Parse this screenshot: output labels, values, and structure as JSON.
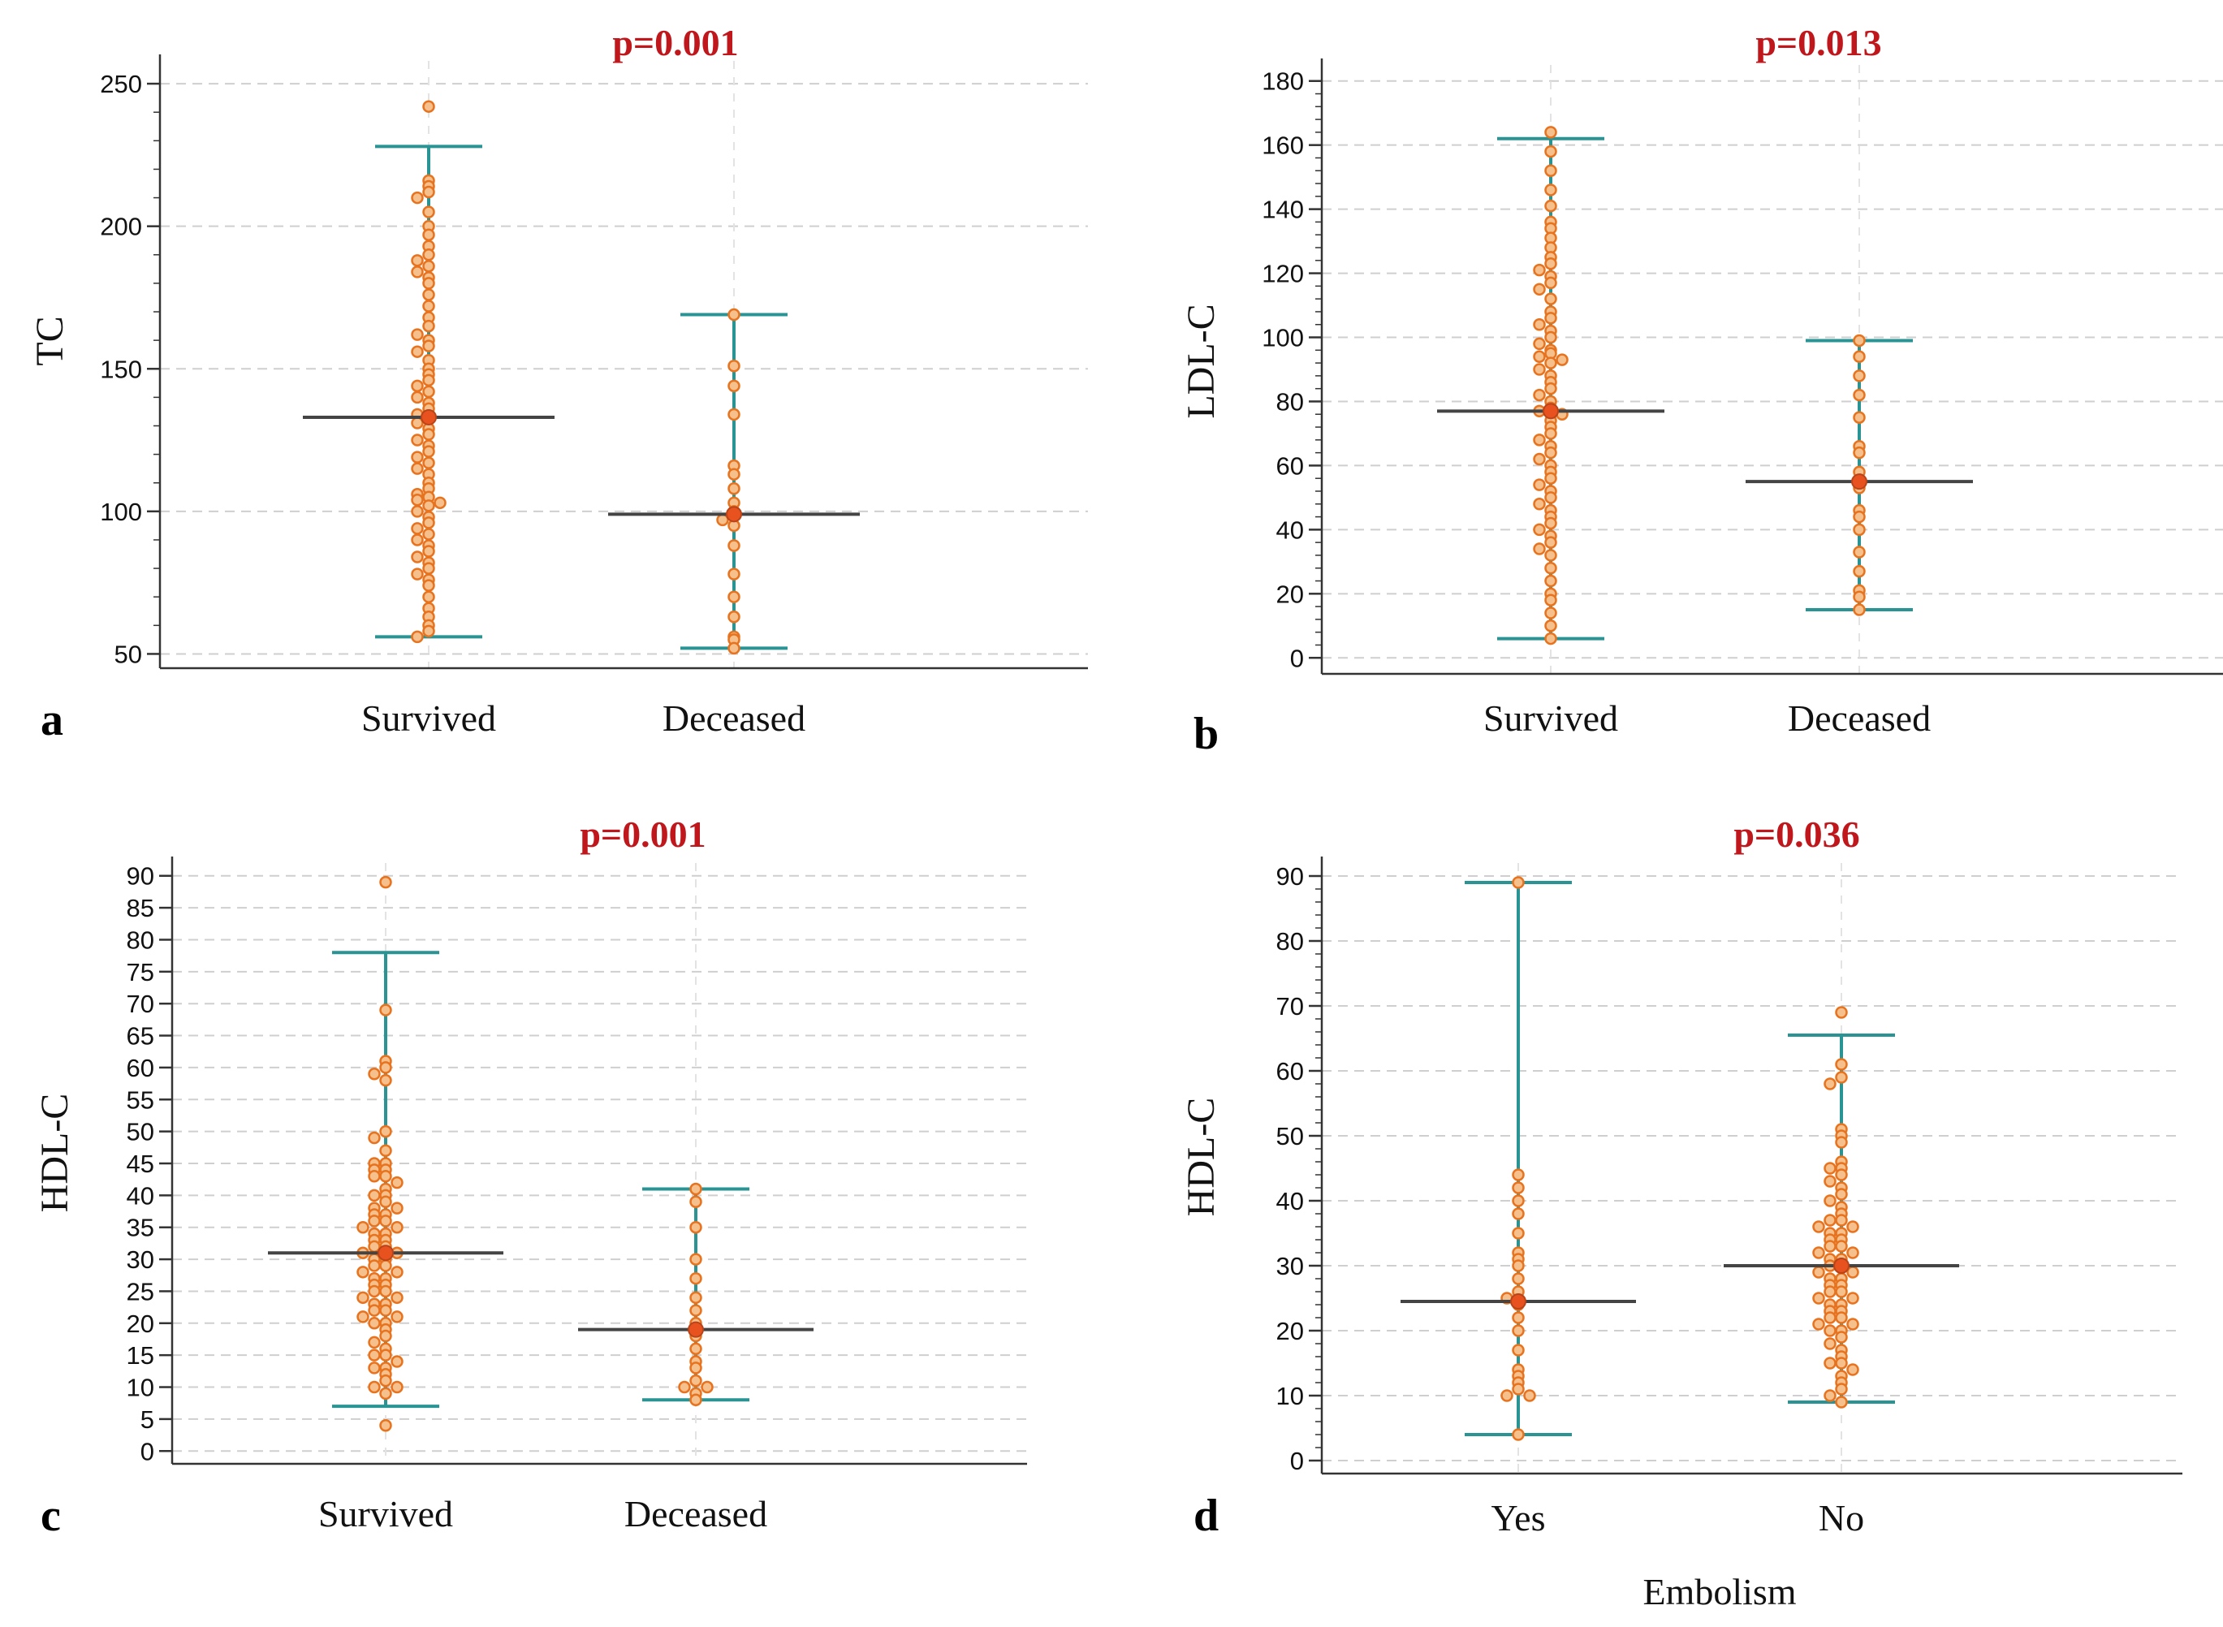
{
  "colors": {
    "pvalue": "#c0171c",
    "whisker": "#2a9494",
    "median": "#444444",
    "point_fill": "#f6c08c",
    "point_stroke": "#e8731f",
    "mean_marker": "#e8521f",
    "grid": "#cfcfcf",
    "axis": "#333333"
  },
  "chart_data": [
    {
      "type": "scatter",
      "subtype": "dot-plot with median and range",
      "panel": "a",
      "title": "p=0.001",
      "ylabel": "TC",
      "xlabel": "",
      "ylim": [
        45,
        258
      ],
      "yticks": [
        50,
        100,
        150,
        200,
        250
      ],
      "grid": true,
      "categories": [
        "Survived",
        "Deceased"
      ],
      "series": [
        {
          "name": "Survived",
          "median": 133,
          "whisker_low": 56,
          "whisker_high": 228,
          "values": [
            242,
            216,
            214,
            212,
            210,
            205,
            200,
            197,
            193,
            190,
            188,
            186,
            184,
            182,
            180,
            176,
            172,
            168,
            165,
            162,
            160,
            158,
            156,
            153,
            150,
            148,
            146,
            144,
            142,
            140,
            138,
            136,
            134,
            133,
            131,
            129,
            127,
            125,
            123,
            121,
            119,
            117,
            115,
            113,
            110,
            108,
            106,
            105,
            104,
            103,
            102,
            100,
            98,
            96,
            94,
            92,
            90,
            88,
            86,
            84,
            82,
            80,
            78,
            76,
            74,
            70,
            66,
            63,
            60,
            58,
            56
          ]
        },
        {
          "name": "Deceased",
          "median": 99,
          "whisker_low": 52,
          "whisker_high": 169,
          "values": [
            169,
            151,
            144,
            134,
            116,
            113,
            108,
            103,
            100,
            99,
            97,
            95,
            88,
            78,
            70,
            63,
            56,
            55,
            52
          ]
        }
      ]
    },
    {
      "type": "scatter",
      "subtype": "dot-plot with median and range",
      "panel": "b",
      "title": "p=0.013",
      "ylabel": "LDL-C",
      "xlabel": "",
      "ylim": [
        -5,
        185
      ],
      "yticks": [
        0,
        20,
        40,
        60,
        80,
        100,
        120,
        140,
        160,
        180
      ],
      "grid": true,
      "categories": [
        "Survived",
        "Deceased"
      ],
      "series": [
        {
          "name": "Survived",
          "median": 77,
          "whisker_low": 6,
          "whisker_high": 162,
          "values": [
            164,
            158,
            152,
            146,
            141,
            136,
            134,
            131,
            128,
            125,
            123,
            121,
            119,
            117,
            115,
            112,
            108,
            106,
            104,
            102,
            100,
            98,
            96,
            95,
            94,
            93,
            92,
            90,
            88,
            86,
            84,
            82,
            80,
            78,
            77,
            76,
            74,
            72,
            70,
            68,
            66,
            64,
            62,
            60,
            58,
            56,
            54,
            52,
            50,
            48,
            46,
            44,
            42,
            40,
            38,
            36,
            34,
            32,
            28,
            24,
            20,
            18,
            14,
            10,
            6
          ]
        },
        {
          "name": "Deceased",
          "median": 55,
          "whisker_low": 15,
          "whisker_high": 99,
          "values": [
            99,
            94,
            88,
            82,
            75,
            66,
            64,
            58,
            55,
            53,
            46,
            44,
            40,
            33,
            27,
            21,
            19,
            15
          ]
        }
      ]
    },
    {
      "type": "scatter",
      "subtype": "dot-plot with median and range",
      "panel": "c",
      "title": "p=0.001",
      "ylabel": "HDL-C",
      "xlabel": "",
      "ylim": [
        -2,
        92
      ],
      "yticks": [
        0,
        5,
        10,
        15,
        20,
        25,
        30,
        35,
        40,
        45,
        50,
        55,
        60,
        65,
        70,
        75,
        80,
        85,
        90
      ],
      "grid": true,
      "categories": [
        "Survived",
        "Deceased"
      ],
      "series": [
        {
          "name": "Survived",
          "median": 31,
          "whisker_low": 7,
          "whisker_high": 78,
          "values": [
            89,
            69,
            61,
            60,
            59,
            58,
            50,
            49,
            47,
            45,
            45,
            44,
            44,
            43,
            43,
            42,
            41,
            40,
            40,
            39,
            38,
            38,
            37,
            37,
            36,
            36,
            35,
            35,
            34,
            34,
            33,
            33,
            32,
            32,
            31,
            31,
            30,
            30,
            29,
            29,
            28,
            28,
            27,
            27,
            26,
            26,
            25,
            25,
            24,
            24,
            23,
            23,
            22,
            22,
            21,
            21,
            20,
            20,
            19,
            18,
            17,
            16,
            15,
            15,
            14,
            13,
            13,
            12,
            11,
            10,
            10,
            9,
            4
          ]
        },
        {
          "name": "Deceased",
          "median": 19,
          "whisker_low": 8,
          "whisker_high": 41,
          "values": [
            41,
            39,
            35,
            30,
            27,
            24,
            22,
            20,
            19,
            18,
            16,
            14,
            13,
            11,
            10,
            10,
            9,
            8
          ]
        }
      ]
    },
    {
      "type": "scatter",
      "subtype": "dot-plot with median and range",
      "panel": "d",
      "title": "p=0.036",
      "ylabel": "HDL-C",
      "xlabel": "Embolism",
      "ylim": [
        -2,
        92
      ],
      "yticks": [
        0,
        10,
        20,
        30,
        40,
        50,
        60,
        70,
        80,
        90
      ],
      "grid": true,
      "categories": [
        "Yes",
        "No"
      ],
      "series": [
        {
          "name": "Yes",
          "median": 24.5,
          "whisker_low": 4,
          "whisker_high": 89,
          "values": [
            89,
            44,
            42,
            40,
            38,
            35,
            32,
            31,
            30,
            28,
            26,
            25,
            24,
            22,
            20,
            17,
            14,
            13,
            12,
            11,
            10,
            10,
            4
          ]
        },
        {
          "name": "No",
          "median": 30,
          "whisker_low": 9,
          "whisker_high": 65.5,
          "values": [
            69,
            61,
            59,
            58,
            51,
            50,
            49,
            46,
            45,
            45,
            44,
            43,
            42,
            41,
            40,
            39,
            38,
            37,
            37,
            36,
            36,
            35,
            35,
            34,
            34,
            33,
            33,
            32,
            32,
            31,
            31,
            30,
            30,
            29,
            29,
            28,
            28,
            27,
            27,
            26,
            26,
            25,
            25,
            24,
            24,
            23,
            23,
            22,
            22,
            21,
            21,
            20,
            20,
            19,
            18,
            17,
            16,
            15,
            15,
            14,
            13,
            12,
            11,
            10,
            9
          ]
        }
      ]
    }
  ]
}
